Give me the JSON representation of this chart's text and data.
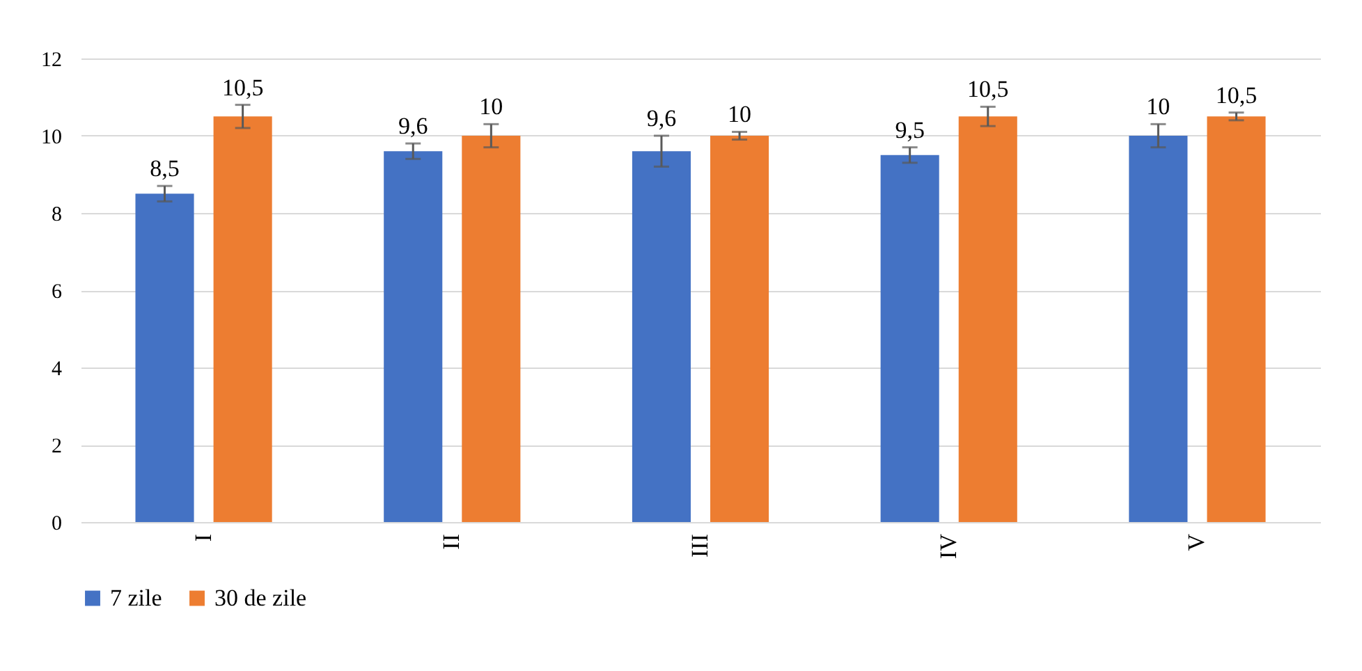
{
  "chart_data": {
    "type": "bar",
    "categories": [
      "I",
      "II",
      "III",
      "IV",
      "V"
    ],
    "series": [
      {
        "name": "7 zile",
        "color": "#4472c4",
        "values": [
          8.5,
          9.6,
          9.6,
          9.5,
          10
        ],
        "errors": [
          0.2,
          0.2,
          0.4,
          0.2,
          0.3
        ],
        "value_labels": [
          "8,5",
          "9,6",
          "9,6",
          "9,5",
          "10"
        ]
      },
      {
        "name": "30 de zile",
        "color": "#ed7d31",
        "values": [
          10.5,
          10,
          10,
          10.5,
          10.5
        ],
        "errors": [
          0.3,
          0.3,
          0.1,
          0.25,
          0.1
        ],
        "value_labels": [
          "10,5",
          "10",
          "10",
          "10,5",
          "10,5"
        ]
      }
    ],
    "ylim": [
      0,
      12
    ],
    "yticks": [
      0,
      2,
      4,
      6,
      8,
      10,
      12
    ],
    "grid": "y",
    "legend": "bottom"
  }
}
